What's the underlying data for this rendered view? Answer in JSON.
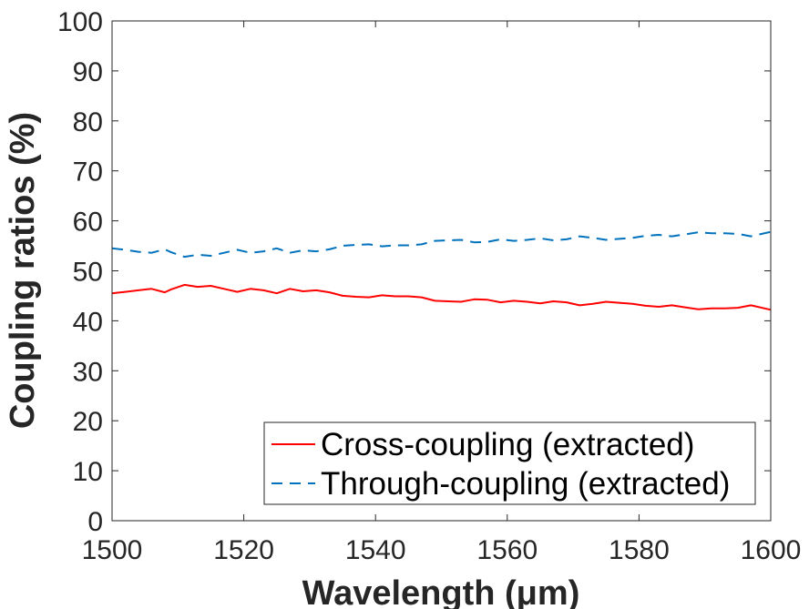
{
  "chart_data": {
    "type": "line",
    "xlabel": "Wavelength (μm)",
    "ylabel": "Coupling ratios (%)",
    "xlim": [
      1500,
      1600
    ],
    "ylim": [
      0,
      100
    ],
    "xticks": [
      1500,
      1520,
      1540,
      1560,
      1580,
      1600
    ],
    "yticks": [
      0,
      10,
      20,
      30,
      40,
      50,
      60,
      70,
      80,
      90,
      100
    ],
    "grid": false,
    "legend_position": "bottom-right",
    "series": [
      {
        "name": "Cross-coupling (extracted)",
        "color": "#ff0000",
        "style": "solid",
        "x": [
          1500,
          1502,
          1504,
          1506,
          1508,
          1509,
          1511,
          1513,
          1515,
          1517,
          1519,
          1521,
          1523,
          1525,
          1527,
          1529,
          1531,
          1533,
          1535,
          1537,
          1539,
          1541,
          1543,
          1545,
          1547,
          1549,
          1551,
          1553,
          1555,
          1557,
          1559,
          1561,
          1563,
          1565,
          1567,
          1569,
          1571,
          1573,
          1575,
          1577,
          1579,
          1581,
          1583,
          1585,
          1587,
          1589,
          1591,
          1593,
          1595,
          1597,
          1600
        ],
        "y": [
          45.5,
          45.8,
          46.1,
          46.4,
          45.7,
          46.3,
          47.2,
          46.8,
          47.0,
          46.4,
          45.8,
          46.4,
          46.1,
          45.5,
          46.4,
          45.9,
          46.1,
          45.7,
          45.0,
          44.8,
          44.7,
          45.1,
          44.9,
          44.9,
          44.7,
          44.0,
          43.9,
          43.8,
          44.3,
          44.2,
          43.7,
          44.0,
          43.8,
          43.5,
          43.9,
          43.7,
          43.1,
          43.4,
          43.8,
          43.6,
          43.4,
          43.0,
          42.8,
          43.1,
          42.7,
          42.3,
          42.5,
          42.5,
          42.6,
          43.1,
          42.2
        ]
      },
      {
        "name": "Through-coupling (extracted)",
        "color": "#0072bd",
        "style": "dashed",
        "x": [
          1500,
          1502,
          1504,
          1506,
          1508,
          1509,
          1511,
          1513,
          1515,
          1517,
          1519,
          1521,
          1523,
          1525,
          1527,
          1529,
          1531,
          1533,
          1535,
          1537,
          1539,
          1541,
          1543,
          1545,
          1547,
          1549,
          1551,
          1553,
          1555,
          1557,
          1559,
          1561,
          1563,
          1565,
          1567,
          1569,
          1571,
          1573,
          1575,
          1577,
          1579,
          1581,
          1583,
          1585,
          1587,
          1589,
          1591,
          1593,
          1595,
          1597,
          1600
        ],
        "y": [
          54.5,
          54.2,
          53.8,
          53.6,
          54.3,
          53.7,
          52.8,
          53.2,
          53.0,
          53.6,
          54.2,
          53.6,
          53.9,
          54.5,
          53.6,
          54.1,
          53.9,
          54.3,
          55.0,
          55.2,
          55.3,
          54.9,
          55.1,
          55.1,
          55.3,
          56.0,
          56.1,
          56.2,
          55.7,
          55.8,
          56.3,
          56.0,
          56.2,
          56.5,
          56.1,
          56.3,
          56.9,
          56.6,
          56.2,
          56.4,
          56.6,
          57.0,
          57.2,
          56.9,
          57.3,
          57.7,
          57.5,
          57.5,
          57.4,
          56.9,
          57.8
        ]
      }
    ]
  }
}
